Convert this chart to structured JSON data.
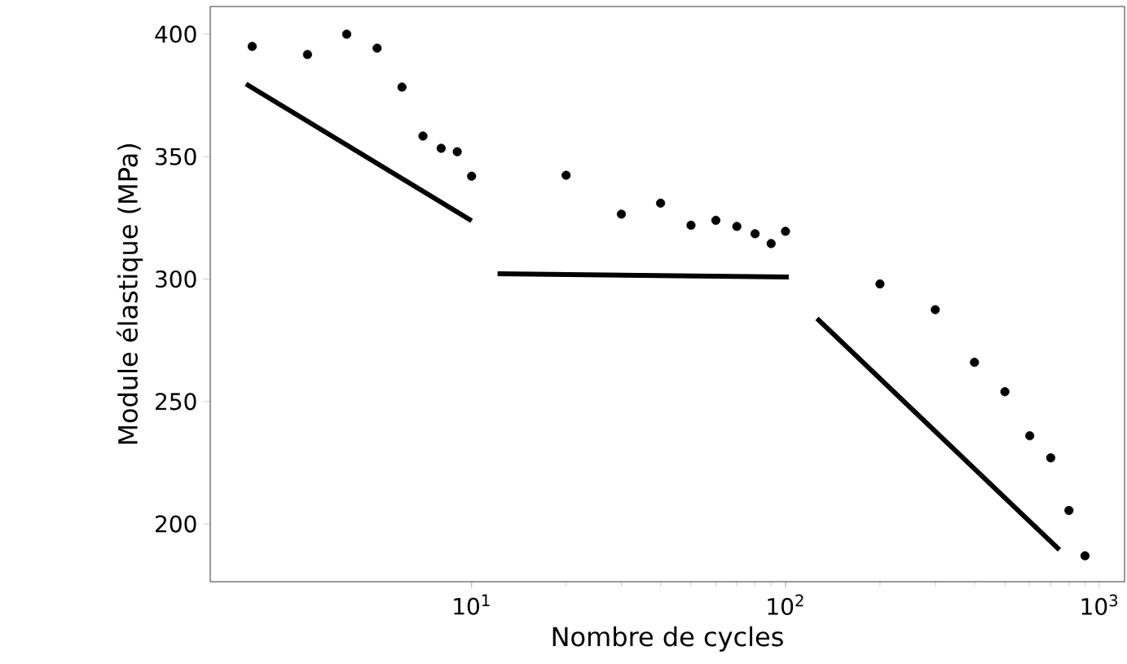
{
  "chart_data": {
    "type": "scatter",
    "xlabel": "Nombre de cycles",
    "ylabel": "Module élastique (MPa)",
    "log": "x",
    "grid": false,
    "xlim": [
      1.47,
      1203
    ],
    "ylim": [
      176.4,
      411.3
    ],
    "xticks": [
      {
        "value": 10,
        "label": "10$^{1}$"
      },
      {
        "value": 100,
        "label": "10$^{2}$"
      },
      {
        "value": 1000,
        "label": "10$^{3}$"
      }
    ],
    "yticks": [
      200,
      250,
      300,
      350,
      400
    ],
    "series": [
      {
        "type": "scatter",
        "marker": "circle",
        "color": "#000000",
        "x": [
          2,
          3,
          4,
          5,
          6,
          7,
          8,
          9,
          10,
          20,
          30,
          40,
          50,
          60,
          70,
          80,
          90,
          100,
          200,
          300,
          400,
          500,
          600,
          700,
          800,
          900
        ],
        "values": [
          395,
          391.7,
          400,
          394.3,
          378.4,
          358.4,
          353.4,
          352,
          342,
          342.4,
          326.5,
          331,
          322,
          324,
          321.5,
          318.5,
          314.5,
          319.5,
          298,
          287.5,
          266,
          254,
          236,
          227,
          205.5,
          187
        ]
      },
      {
        "type": "line",
        "marker": "none",
        "color": "#000000",
        "x": [
          1.91,
          10
        ],
        "values": [
          379.7,
          323.8
        ]
      },
      {
        "type": "line",
        "marker": "none",
        "color": "#000000",
        "x": [
          12.1,
          102.4
        ],
        "values": [
          302.2,
          300.8
        ]
      },
      {
        "type": "line",
        "marker": "none",
        "color": "#000000",
        "x": [
          126,
          746
        ],
        "values": [
          283.9,
          189.4
        ]
      }
    ]
  }
}
